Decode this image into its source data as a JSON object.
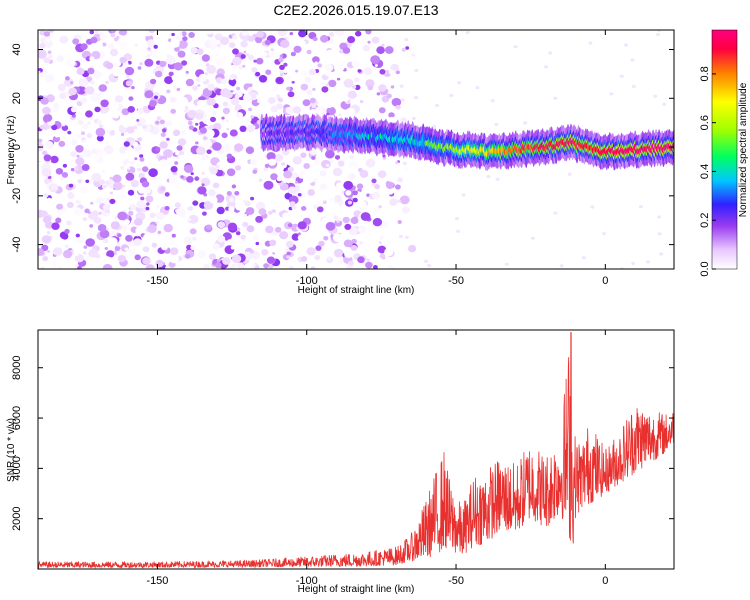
{
  "chart_data": [
    {
      "type": "heatmap",
      "title": "C2E2.2026.015.19.07.E13",
      "xlabel": "Height of straight line (km)",
      "ylabel": "Frequency (Hz)",
      "xlim": [
        -190,
        23
      ],
      "ylim": [
        -50,
        48
      ],
      "x_ticks": [
        -150,
        -100,
        -50,
        0
      ],
      "y_ticks": [
        -40,
        -20,
        0,
        20,
        40
      ],
      "colorbar": {
        "label": "Normalized spectral amplitude",
        "range": [
          0,
          0.98
        ],
        "ticks": [
          0.0,
          0.2,
          0.4,
          0.6,
          0.8
        ],
        "colors": [
          "#ffffff",
          "#e8c8ff",
          "#9a3cf0",
          "#3020ff",
          "#00c8ff",
          "#00ff60",
          "#a0ff00",
          "#ffff00",
          "#ff8000",
          "#ff0040",
          "#ff0080"
        ]
      },
      "ridge": {
        "description_points_x": [
          -115,
          -100,
          -85,
          -75,
          -65,
          -55,
          -50,
          -45,
          -40,
          -30,
          -20,
          -12,
          -5,
          0,
          10,
          23
        ],
        "description_points_y": [
          6,
          6,
          5,
          4,
          3,
          0,
          -1,
          -1,
          -2,
          -1,
          0,
          2,
          0,
          -2,
          -1,
          0
        ],
        "peak_amplitude": [
          0.2,
          0.25,
          0.35,
          0.45,
          0.5,
          0.55,
          0.6,
          0.7,
          0.75,
          0.85,
          0.9,
          0.95,
          0.9,
          0.95,
          0.98,
          0.98
        ]
      },
      "noise_region_xlim": [
        -190,
        -70
      ]
    },
    {
      "type": "line",
      "xlabel": "Height of straight line (km)",
      "ylabel": "SNR (10 * v/v)",
      "xlim": [
        -190,
        23
      ],
      "ylim": [
        0,
        9500
      ],
      "x_ticks": [
        -150,
        -100,
        -50,
        0
      ],
      "y_ticks": [
        2000,
        4000,
        6000,
        8000
      ],
      "color": "#e8302e",
      "envelope": {
        "x": [
          -190,
          -150,
          -120,
          -100,
          -80,
          -70,
          -65,
          -60,
          -56,
          -54,
          -52,
          -48,
          -44,
          -40,
          -35,
          -30,
          -25,
          -20,
          -15,
          -12,
          -11,
          -10,
          -8,
          -5,
          -2,
          0,
          5,
          10,
          15,
          20,
          23
        ],
        "y_low": [
          50,
          60,
          70,
          80,
          100,
          150,
          300,
          400,
          600,
          800,
          700,
          500,
          900,
          1000,
          1500,
          1400,
          2000,
          1600,
          2200,
          1200,
          600,
          2000,
          2400,
          2600,
          2800,
          3000,
          3400,
          3800,
          4200,
          4600,
          5000
        ],
        "y_high": [
          300,
          300,
          350,
          500,
          700,
          900,
          1400,
          2800,
          4200,
          4800,
          3500,
          2500,
          3800,
          4000,
          4500,
          4200,
          5200,
          4600,
          5600,
          9400,
          6000,
          5400,
          5200,
          6000,
          5200,
          4800,
          5600,
          6800,
          6400,
          6200,
          6400
        ]
      }
    }
  ]
}
